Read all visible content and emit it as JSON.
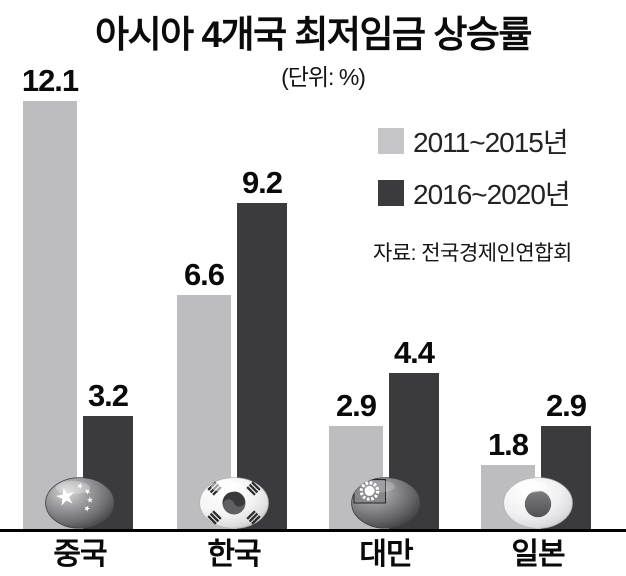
{
  "title": "아시아 4개국 최저임금 상승률",
  "subtitle": "(단위: %)",
  "source": "자료: 전국경제인연합회",
  "legend": {
    "items": [
      {
        "label": "2011~2015년",
        "color": "#c6c6c8"
      },
      {
        "label": "2016~2020년",
        "color": "#3b3b3d"
      }
    ]
  },
  "chart_data": {
    "type": "bar",
    "title": "아시아 4개국 최저임금 상승률",
    "unit": "%",
    "categories": [
      "중국",
      "한국",
      "대만",
      "일본"
    ],
    "series": [
      {
        "name": "2011~2015년",
        "color": "#bdbdbf",
        "values": [
          12.1,
          6.6,
          2.9,
          1.8
        ]
      },
      {
        "name": "2016~2020년",
        "color": "#3b3b3d",
        "values": [
          3.2,
          9.2,
          4.4,
          2.9
        ]
      }
    ],
    "ylim": [
      0,
      12.5
    ],
    "grid": false,
    "axis_labels_hidden": true,
    "legend_position": "top-right",
    "value_labels": true,
    "category_icons": [
      "china-flag-ball",
      "korea-flag-ball",
      "taiwan-flag-ball",
      "japan-flag-ball"
    ]
  }
}
